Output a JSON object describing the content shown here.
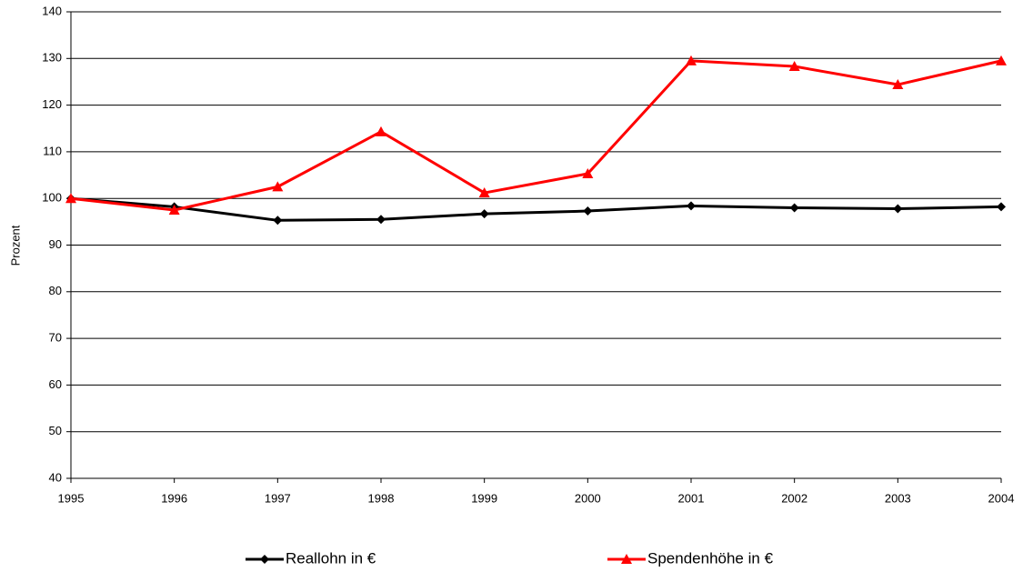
{
  "chart_data": {
    "type": "line",
    "y_label": "Prozent",
    "x": [
      1995,
      1996,
      1997,
      1998,
      1999,
      2000,
      2001,
      2002,
      2003,
      2004
    ],
    "xlim": [
      1995,
      2004
    ],
    "xticks": [
      1995,
      1996,
      1997,
      1998,
      1999,
      2000,
      2001,
      2002,
      2003,
      2004
    ],
    "ylim": [
      40,
      140
    ],
    "yticks": [
      40,
      50,
      60,
      70,
      80,
      90,
      100,
      110,
      120,
      130,
      140
    ],
    "grid": true,
    "legend": "bottom",
    "series": [
      {
        "name": "Reallohn in €",
        "color": "#000000",
        "marker": "diamond",
        "values": [
          100,
          98.2,
          95.3,
          95.5,
          96.7,
          97.3,
          98.4,
          98.0,
          97.8,
          98.2
        ]
      },
      {
        "name": "Spendenhöhe in €",
        "color": "#ff0000",
        "marker": "triangle",
        "values": [
          100,
          97.5,
          102.5,
          114.3,
          101.2,
          105.3,
          129.5,
          128.3,
          124.4,
          129.5
        ]
      }
    ]
  }
}
